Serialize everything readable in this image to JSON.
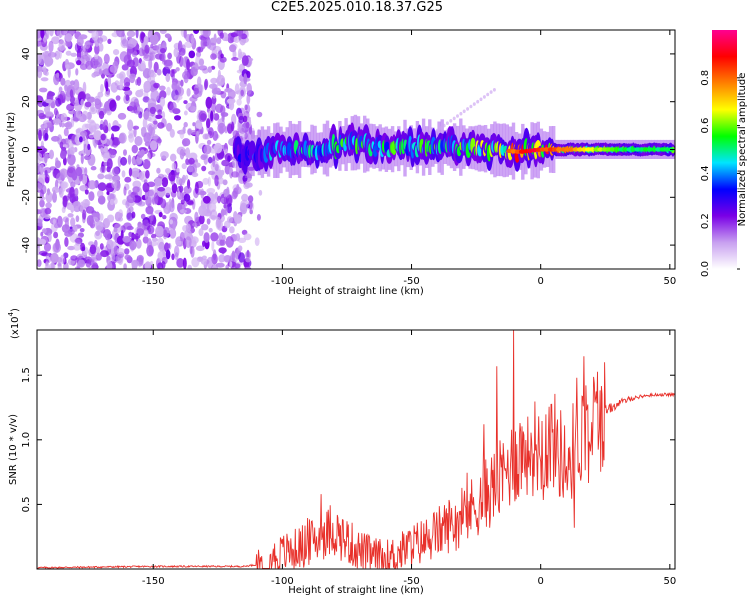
{
  "title": "C2E5.2025.010.18.37.G25",
  "chart_data": [
    {
      "type": "heatmap",
      "title": "C2E5.2025.010.18.37.G25",
      "xlabel": "Height of straight line (km)",
      "ylabel": "Frequency (Hz)",
      "xlim": [
        -195,
        52
      ],
      "ylim": [
        -50,
        50
      ],
      "xticks": [
        -150,
        -100,
        -50,
        0,
        50
      ],
      "yticks": [
        -40,
        -20,
        0,
        20,
        40
      ],
      "colorbar": {
        "label": "Normalized spectral amplitude",
        "range": [
          0,
          1
        ],
        "ticks": [
          "0.0",
          "0.2",
          "0.4",
          "0.6",
          "0.8"
        ],
        "colors": [
          "#ffffff",
          "#c8a0f0",
          "#7a00e6",
          "#0000ff",
          "#00e5ff",
          "#00ff00",
          "#ffff00",
          "#ff8000",
          "#ff0000",
          "#ff0090"
        ]
      },
      "regions": [
        {
          "x": [
            -195,
            -112
          ],
          "freq": [
            -50,
            50
          ],
          "amplitude": 0.05,
          "description_of_fill": "low"
        },
        {
          "x": [
            -112,
            52
          ],
          "freq": [
            -8,
            8
          ],
          "amplitude": 0.5,
          "description_of_fill": "band"
        }
      ],
      "band_centerline": [
        {
          "x": -115,
          "freq": -2,
          "amp": 0.35
        },
        {
          "x": -100,
          "freq": 0,
          "amp": 0.45
        },
        {
          "x": -85,
          "freq": 0,
          "amp": 0.5
        },
        {
          "x": -72,
          "freq": 3,
          "amp": 0.55
        },
        {
          "x": -60,
          "freq": 0,
          "amp": 0.55
        },
        {
          "x": -48,
          "freq": 1,
          "amp": 0.55
        },
        {
          "x": -30,
          "freq": 1,
          "amp": 0.6
        },
        {
          "x": -18,
          "freq": 0,
          "amp": 0.65
        },
        {
          "x": -8,
          "freq": -1,
          "amp": 0.9
        },
        {
          "x": 0,
          "freq": 0,
          "amp": 0.9
        },
        {
          "x": 12,
          "freq": 0,
          "amp": 0.75
        },
        {
          "x": 30,
          "freq": 0,
          "amp": 0.55
        },
        {
          "x": 52,
          "freq": 0,
          "amp": 0.55
        }
      ]
    },
    {
      "type": "line",
      "xlabel": "Height of straight line (km)",
      "ylabel": "SNR (10 * v/v)",
      "y_multiplier": "(x10",
      "y_multiplier_exp": "4",
      "y_multiplier_close": ")",
      "xlim": [
        -195,
        52
      ],
      "ylim": [
        0,
        1.85
      ],
      "xticks": [
        -150,
        -100,
        -50,
        0,
        50
      ],
      "yticks": [
        "0.5",
        "1.0",
        "1.5"
      ],
      "series": [
        {
          "color": "#e8302a",
          "x": [
            -195,
            -150,
            -115,
            -108,
            -100,
            -95,
            -90,
            -85,
            -80,
            -75,
            -70,
            -65,
            -60,
            -55,
            -50,
            -45,
            -40,
            -35,
            -30,
            -25,
            -20,
            -15,
            -10,
            -5,
            0,
            5,
            10,
            15,
            20,
            25,
            30,
            35,
            40,
            45,
            52
          ],
          "y": [
            0.01,
            0.02,
            0.02,
            0.04,
            0.12,
            0.15,
            0.2,
            0.25,
            0.3,
            0.22,
            0.14,
            0.1,
            0.08,
            0.12,
            0.18,
            0.22,
            0.28,
            0.35,
            0.4,
            0.5,
            0.6,
            0.7,
            0.85,
            0.95,
            0.95,
            1.0,
            0.8,
            1.05,
            1.15,
            1.22,
            1.28,
            1.32,
            1.34,
            1.35,
            1.35
          ],
          "spikes": [
            {
              "x": -85,
              "y": 0.58
            },
            {
              "x": -22,
              "y": 1.12
            },
            {
              "x": -17,
              "y": 1.57
            },
            {
              "x": -10.5,
              "y": 1.86
            },
            {
              "x": -5,
              "y": 1.18
            },
            {
              "x": 14,
              "y": 1.48
            },
            {
              "x": 13,
              "y": 0.32
            }
          ]
        }
      ]
    }
  ]
}
